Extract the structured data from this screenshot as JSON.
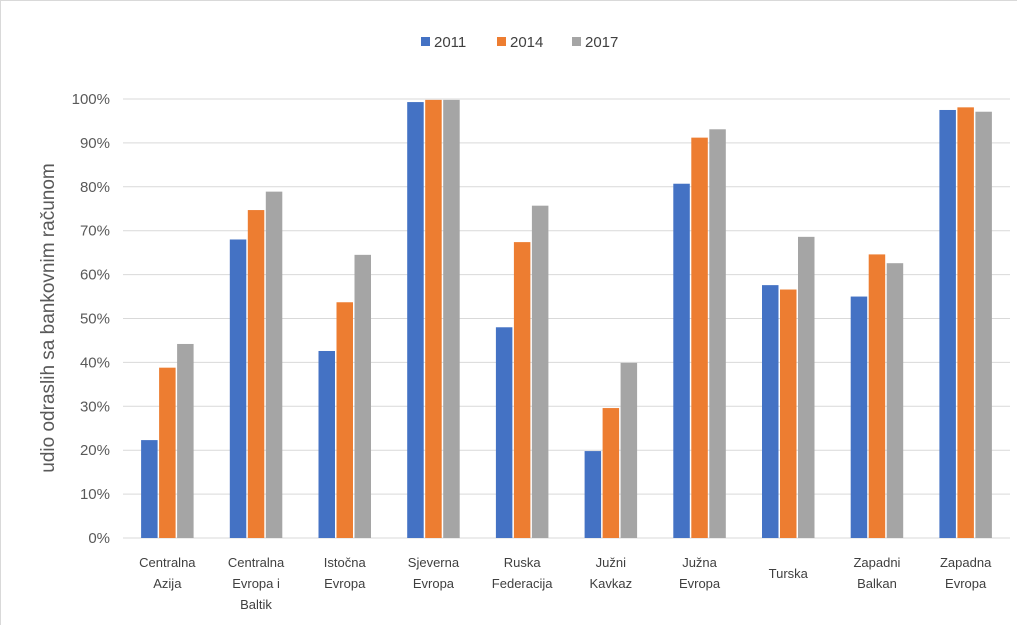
{
  "chart_data": {
    "type": "bar",
    "ylabel": "udio odraslih sa bankovnim računom",
    "xlabel": "",
    "ylim": [
      0,
      100
    ],
    "yticks": [
      "0%",
      "10%",
      "20%",
      "30%",
      "40%",
      "50%",
      "60%",
      "70%",
      "80%",
      "90%",
      "100%"
    ],
    "grid": true,
    "legend_position": "top-center",
    "categories": [
      [
        "Centralna",
        "Azija"
      ],
      [
        "Centralna",
        "Evropa i",
        "Baltik"
      ],
      [
        "Istočna",
        "Evropa"
      ],
      [
        "Sjeverna",
        "Evropa"
      ],
      [
        "Ruska",
        "Federacija"
      ],
      [
        "Južni",
        "Kavkaz"
      ],
      [
        "Južna",
        "Evropa"
      ],
      [
        "Turska"
      ],
      [
        "Zapadni",
        "Balkan"
      ],
      [
        "Zapadna",
        "Evropa"
      ]
    ],
    "series": [
      {
        "name": "2011",
        "color": "#4472c4",
        "values": [
          22.3,
          68,
          42.6,
          99.3,
          48,
          19.8,
          80.7,
          57.6,
          55,
          97.5
        ]
      },
      {
        "name": "2014",
        "color": "#ed7d31",
        "values": [
          38.8,
          74.7,
          53.7,
          99.8,
          67.4,
          29.6,
          91.2,
          56.6,
          64.6,
          98.1
        ]
      },
      {
        "name": "2017",
        "color": "#a5a5a5",
        "values": [
          44.2,
          78.9,
          64.5,
          99.8,
          75.7,
          39.9,
          93.1,
          68.6,
          62.6,
          97.1
        ]
      }
    ]
  }
}
